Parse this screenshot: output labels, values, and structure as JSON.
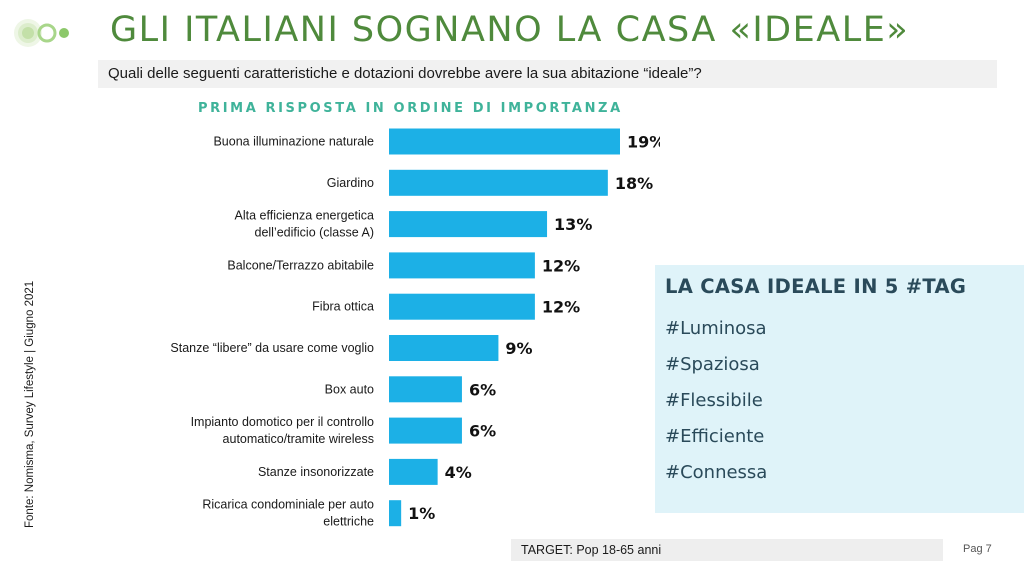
{
  "title": "GLI ITALIANI SOGNANO LA CASA «IDEALE»",
  "question": "Quali delle seguenti caratteristiche e dotazioni dovrebbe avere la sua abitazione “ideale”?",
  "subtitle": "PRIMA RISPOSTA IN ORDINE DI IMPORTANZA",
  "source": "Fonte: Nomisma, Survey Lifestyle | Giugno 2021",
  "tag_box": {
    "title": "LA CASA IDEALE IN 5 #TAG",
    "tags": [
      "#Luminosa",
      "#Spaziosa",
      "#Flessibile",
      "#Efficiente",
      "#Connessa"
    ]
  },
  "target": "TARGET: Pop 18-65 anni",
  "page": "Pag 7",
  "colors": {
    "title": "#4f8a3c",
    "bar": "#1cb0e6",
    "subtitle": "#3fb39a",
    "tag_bg": "#dff3f9",
    "tag_text": "#2a4a5a"
  },
  "icons": {
    "logo": "green-concentric-circles-logo"
  },
  "chart_data": {
    "type": "bar",
    "orientation": "horizontal",
    "categories": [
      [
        "Buona illuminazione naturale"
      ],
      [
        "Giardino"
      ],
      [
        "Alta efficienza energetica",
        "dell’edificio (classe A)"
      ],
      [
        "Balcone/Terrazzo abitabile"
      ],
      [
        "Fibra ottica"
      ],
      [
        "Stanze “libere” da usare come voglio"
      ],
      [
        "Box auto"
      ],
      [
        "Impianto domotico per il controllo",
        "automatico/tramite wireless"
      ],
      [
        "Stanze insonorizzate"
      ],
      [
        "Ricarica condominiale per auto",
        "elettriche"
      ]
    ],
    "values": [
      19,
      18,
      13,
      12,
      12,
      9,
      6,
      6,
      4,
      1
    ],
    "value_labels": [
      "19%",
      "18%",
      "13%",
      "12%",
      "12%",
      "9%",
      "6%",
      "6%",
      "4%",
      "1%"
    ],
    "unit": "%",
    "xlim": [
      0,
      19
    ],
    "grid": false,
    "legend": "none"
  }
}
